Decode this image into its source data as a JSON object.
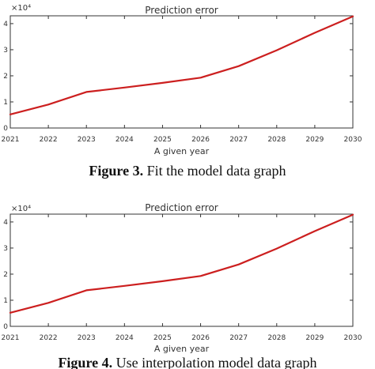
{
  "chart_data": [
    {
      "type": "line",
      "title": "Prediction error",
      "xlabel": "A given year",
      "ylabel": "",
      "y_exponent_label": "×10⁴",
      "xlim": [
        2021,
        2030
      ],
      "ylim": [
        0,
        4.3
      ],
      "x_ticks": [
        "2021",
        "2022",
        "2023",
        "2024",
        "2025",
        "2026",
        "2027",
        "2028",
        "2029",
        "2030"
      ],
      "y_ticks": [
        "0",
        "1",
        "2",
        "3",
        "4"
      ],
      "grid": false,
      "series_color": "#cc1f1f",
      "series": [
        {
          "x": [
            2021,
            2022,
            2023,
            2024,
            2025,
            2026,
            2027,
            2028,
            2029,
            2030
          ],
          "values": [
            0.52,
            0.9,
            1.38,
            1.55,
            1.73,
            1.93,
            2.37,
            2.98,
            3.65,
            4.28
          ]
        }
      ]
    },
    {
      "type": "line",
      "title": "Prediction error",
      "xlabel": "A given year",
      "ylabel": "",
      "y_exponent_label": "×10⁴",
      "xlim": [
        2021,
        2030
      ],
      "ylim": [
        0,
        4.3
      ],
      "x_ticks": [
        "2021",
        "2022",
        "2023",
        "2024",
        "2025",
        "2026",
        "2027",
        "2028",
        "2029",
        "2030"
      ],
      "y_ticks": [
        "0",
        "1",
        "2",
        "3",
        "4"
      ],
      "grid": false,
      "series_color": "#cc1f1f",
      "series": [
        {
          "x": [
            2021,
            2022,
            2023,
            2024,
            2025,
            2026,
            2027,
            2028,
            2029,
            2030
          ],
          "values": [
            0.52,
            0.9,
            1.38,
            1.55,
            1.73,
            1.93,
            2.37,
            2.98,
            3.65,
            4.28
          ]
        }
      ]
    }
  ],
  "captions": [
    {
      "label": "Figure 3.",
      "text": " Fit the model data graph"
    },
    {
      "label": "Figure 4.",
      "text": " Use interpolation model data graph"
    }
  ]
}
